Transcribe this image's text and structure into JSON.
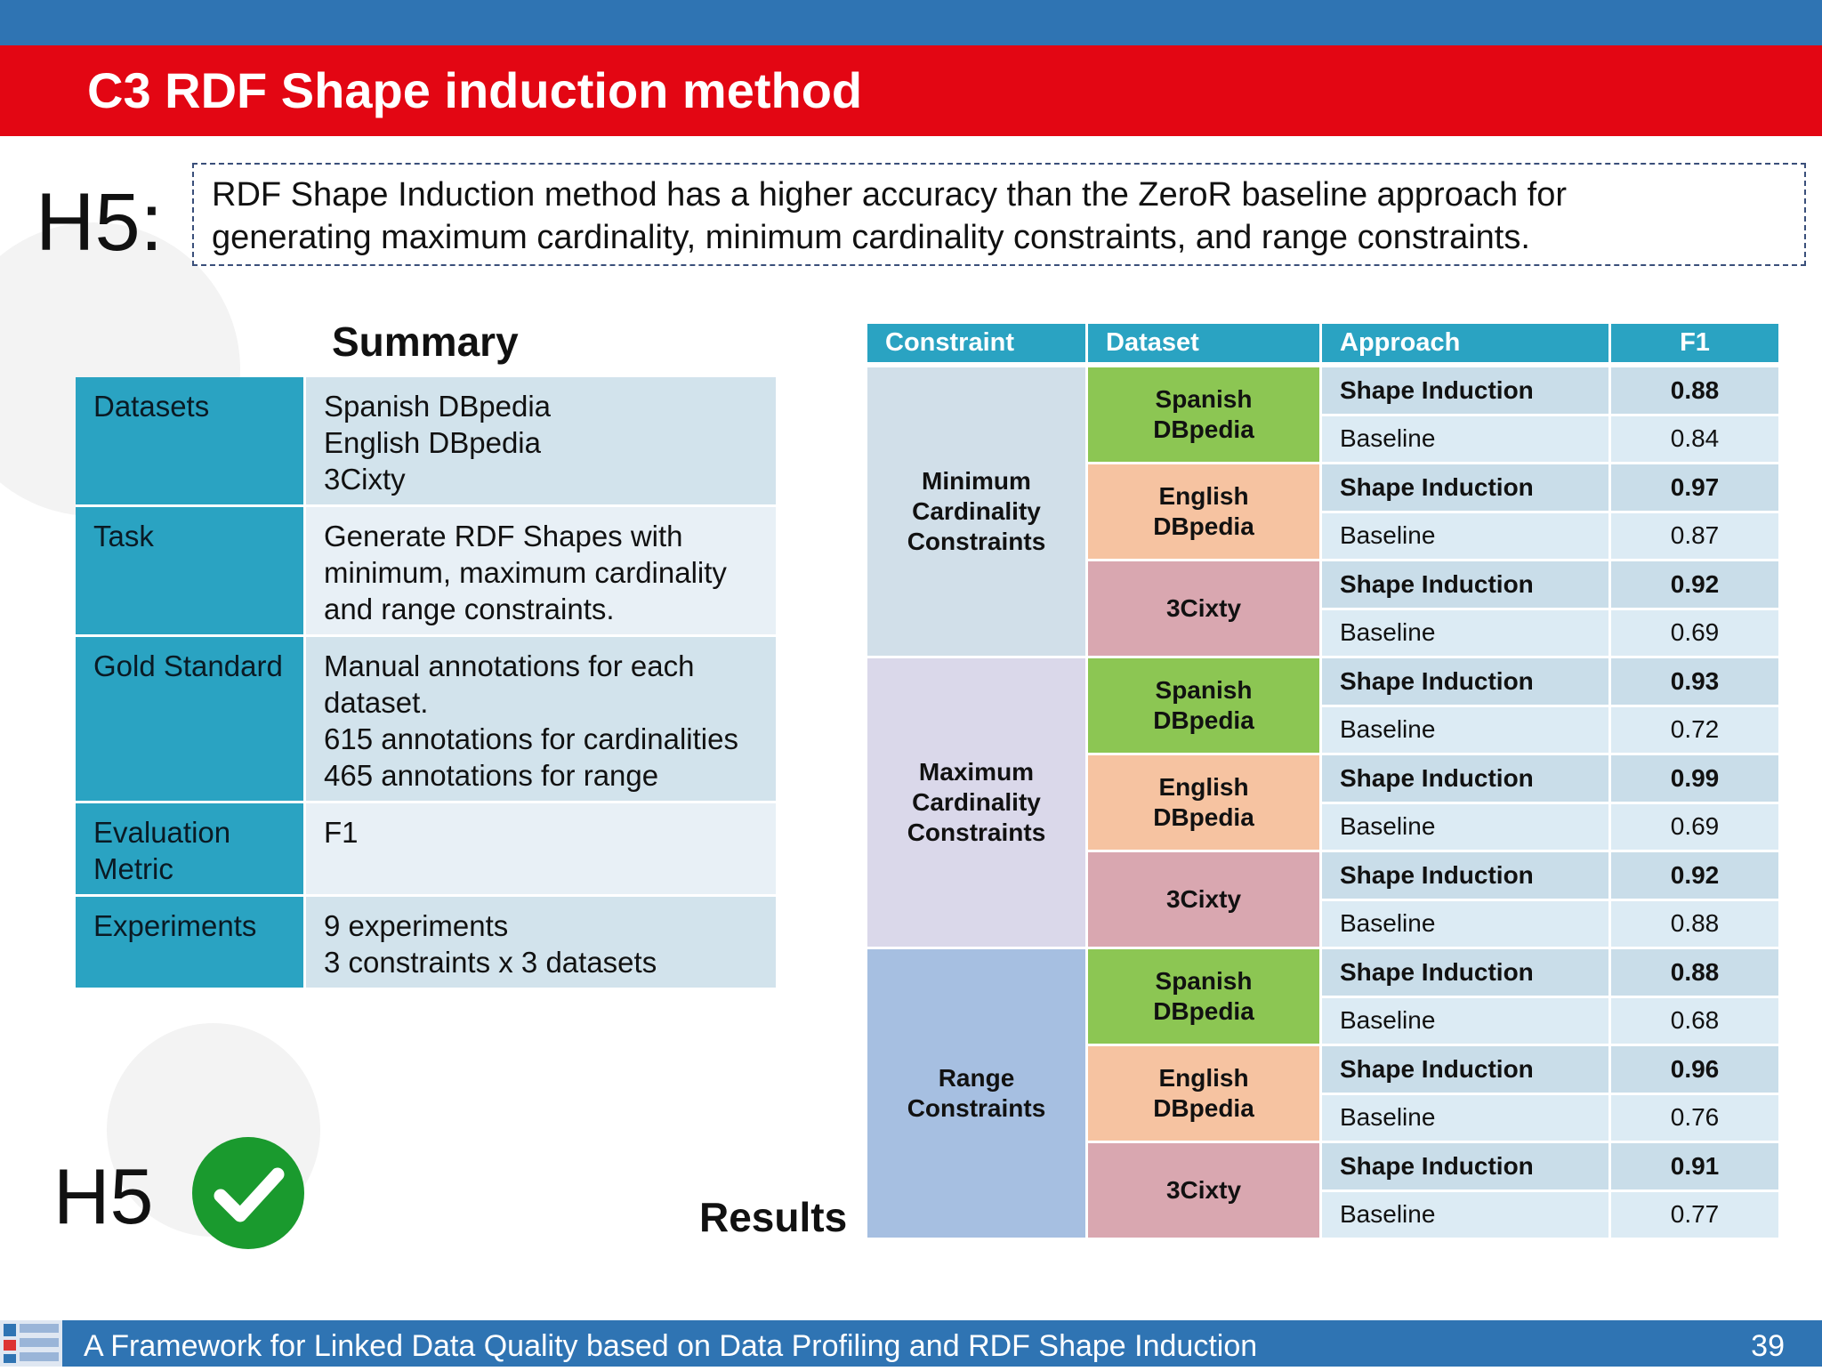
{
  "header": {
    "title": "C3 RDF Shape induction method"
  },
  "hypothesis": {
    "label": "H5:",
    "line1": "RDF Shape Induction method has a higher accuracy than the ZeroR baseline approach for",
    "line2": "generating maximum cardinality, minimum cardinality constraints, and range constraints."
  },
  "summary": {
    "title": "Summary",
    "rows": [
      {
        "key": "Datasets",
        "values": [
          "Spanish DBpedia",
          "English DBpedia",
          "3Cixty"
        ]
      },
      {
        "key": "Task",
        "values": [
          "Generate RDF Shapes with",
          "minimum, maximum cardinality",
          "and range constraints."
        ]
      },
      {
        "key": "Gold Standard",
        "values": [
          "Manual annotations for each",
          "dataset.",
          "615 annotations for cardinalities",
          "465 annotations for range"
        ]
      },
      {
        "key": "Evaluation Metric",
        "key_lines": [
          "Evaluation",
          "Metric"
        ],
        "values": [
          "F1"
        ]
      },
      {
        "key": "Experiments",
        "values": [
          "9 experiments",
          "3 constraints x 3 datasets"
        ]
      }
    ]
  },
  "results": {
    "label": "Results",
    "headers": [
      "Constraint",
      "Dataset",
      "Approach",
      "F1"
    ],
    "groups": [
      {
        "constraint": [
          "Minimum",
          "Cardinality",
          "Constraints"
        ],
        "datasets": [
          {
            "name": [
              "Spanish",
              "DBpedia"
            ],
            "rows": [
              {
                "approach": "Shape Induction",
                "f1": "0.88"
              },
              {
                "approach": "Baseline",
                "f1": "0.84"
              }
            ]
          },
          {
            "name": [
              "English",
              "DBpedia"
            ],
            "rows": [
              {
                "approach": "Shape Induction",
                "f1": "0.97"
              },
              {
                "approach": "Baseline",
                "f1": "0.87"
              }
            ]
          },
          {
            "name": [
              "3Cixty"
            ],
            "rows": [
              {
                "approach": "Shape Induction",
                "f1": "0.92"
              },
              {
                "approach": "Baseline",
                "f1": "0.69"
              }
            ]
          }
        ]
      },
      {
        "constraint": [
          "Maximum",
          "Cardinality",
          "Constraints"
        ],
        "datasets": [
          {
            "name": [
              "Spanish",
              "DBpedia"
            ],
            "rows": [
              {
                "approach": "Shape Induction",
                "f1": "0.93"
              },
              {
                "approach": "Baseline",
                "f1": "0.72"
              }
            ]
          },
          {
            "name": [
              "English",
              "DBpedia"
            ],
            "rows": [
              {
                "approach": "Shape Induction",
                "f1": "0.99"
              },
              {
                "approach": "Baseline",
                "f1": "0.69"
              }
            ]
          },
          {
            "name": [
              "3Cixty"
            ],
            "rows": [
              {
                "approach": "Shape Induction",
                "f1": "0.92"
              },
              {
                "approach": "Baseline",
                "f1": "0.88"
              }
            ]
          }
        ]
      },
      {
        "constraint": [
          "Range",
          "Constraints"
        ],
        "datasets": [
          {
            "name": [
              "Spanish",
              "DBpedia"
            ],
            "rows": [
              {
                "approach": "Shape Induction",
                "f1": "0.88"
              },
              {
                "approach": "Baseline",
                "f1": "0.68"
              }
            ]
          },
          {
            "name": [
              "English",
              "DBpedia"
            ],
            "rows": [
              {
                "approach": "Shape Induction",
                "f1": "0.96"
              },
              {
                "approach": "Baseline",
                "f1": "0.76"
              }
            ]
          },
          {
            "name": [
              "3Cixty"
            ],
            "rows": [
              {
                "approach": "Shape Induction",
                "f1": "0.91"
              },
              {
                "approach": "Baseline",
                "f1": "0.77"
              }
            ]
          }
        ]
      }
    ]
  },
  "verdict": {
    "label": "H5",
    "icon": "check-circle-icon",
    "color": "#1a9a2e"
  },
  "footer": {
    "text": "A Framework for Linked Data Quality based on Data Profiling and RDF Shape Induction",
    "page": "39",
    "logo_icon": "ontology-group-logo-icon"
  },
  "colors": {
    "title_bar": "#e30613",
    "top_strip": "#2f74b3",
    "table_header": "#2aa3c2",
    "spanish": "#8cc653",
    "english": "#f6c3a1",
    "cixty": "#d9a7b0"
  }
}
